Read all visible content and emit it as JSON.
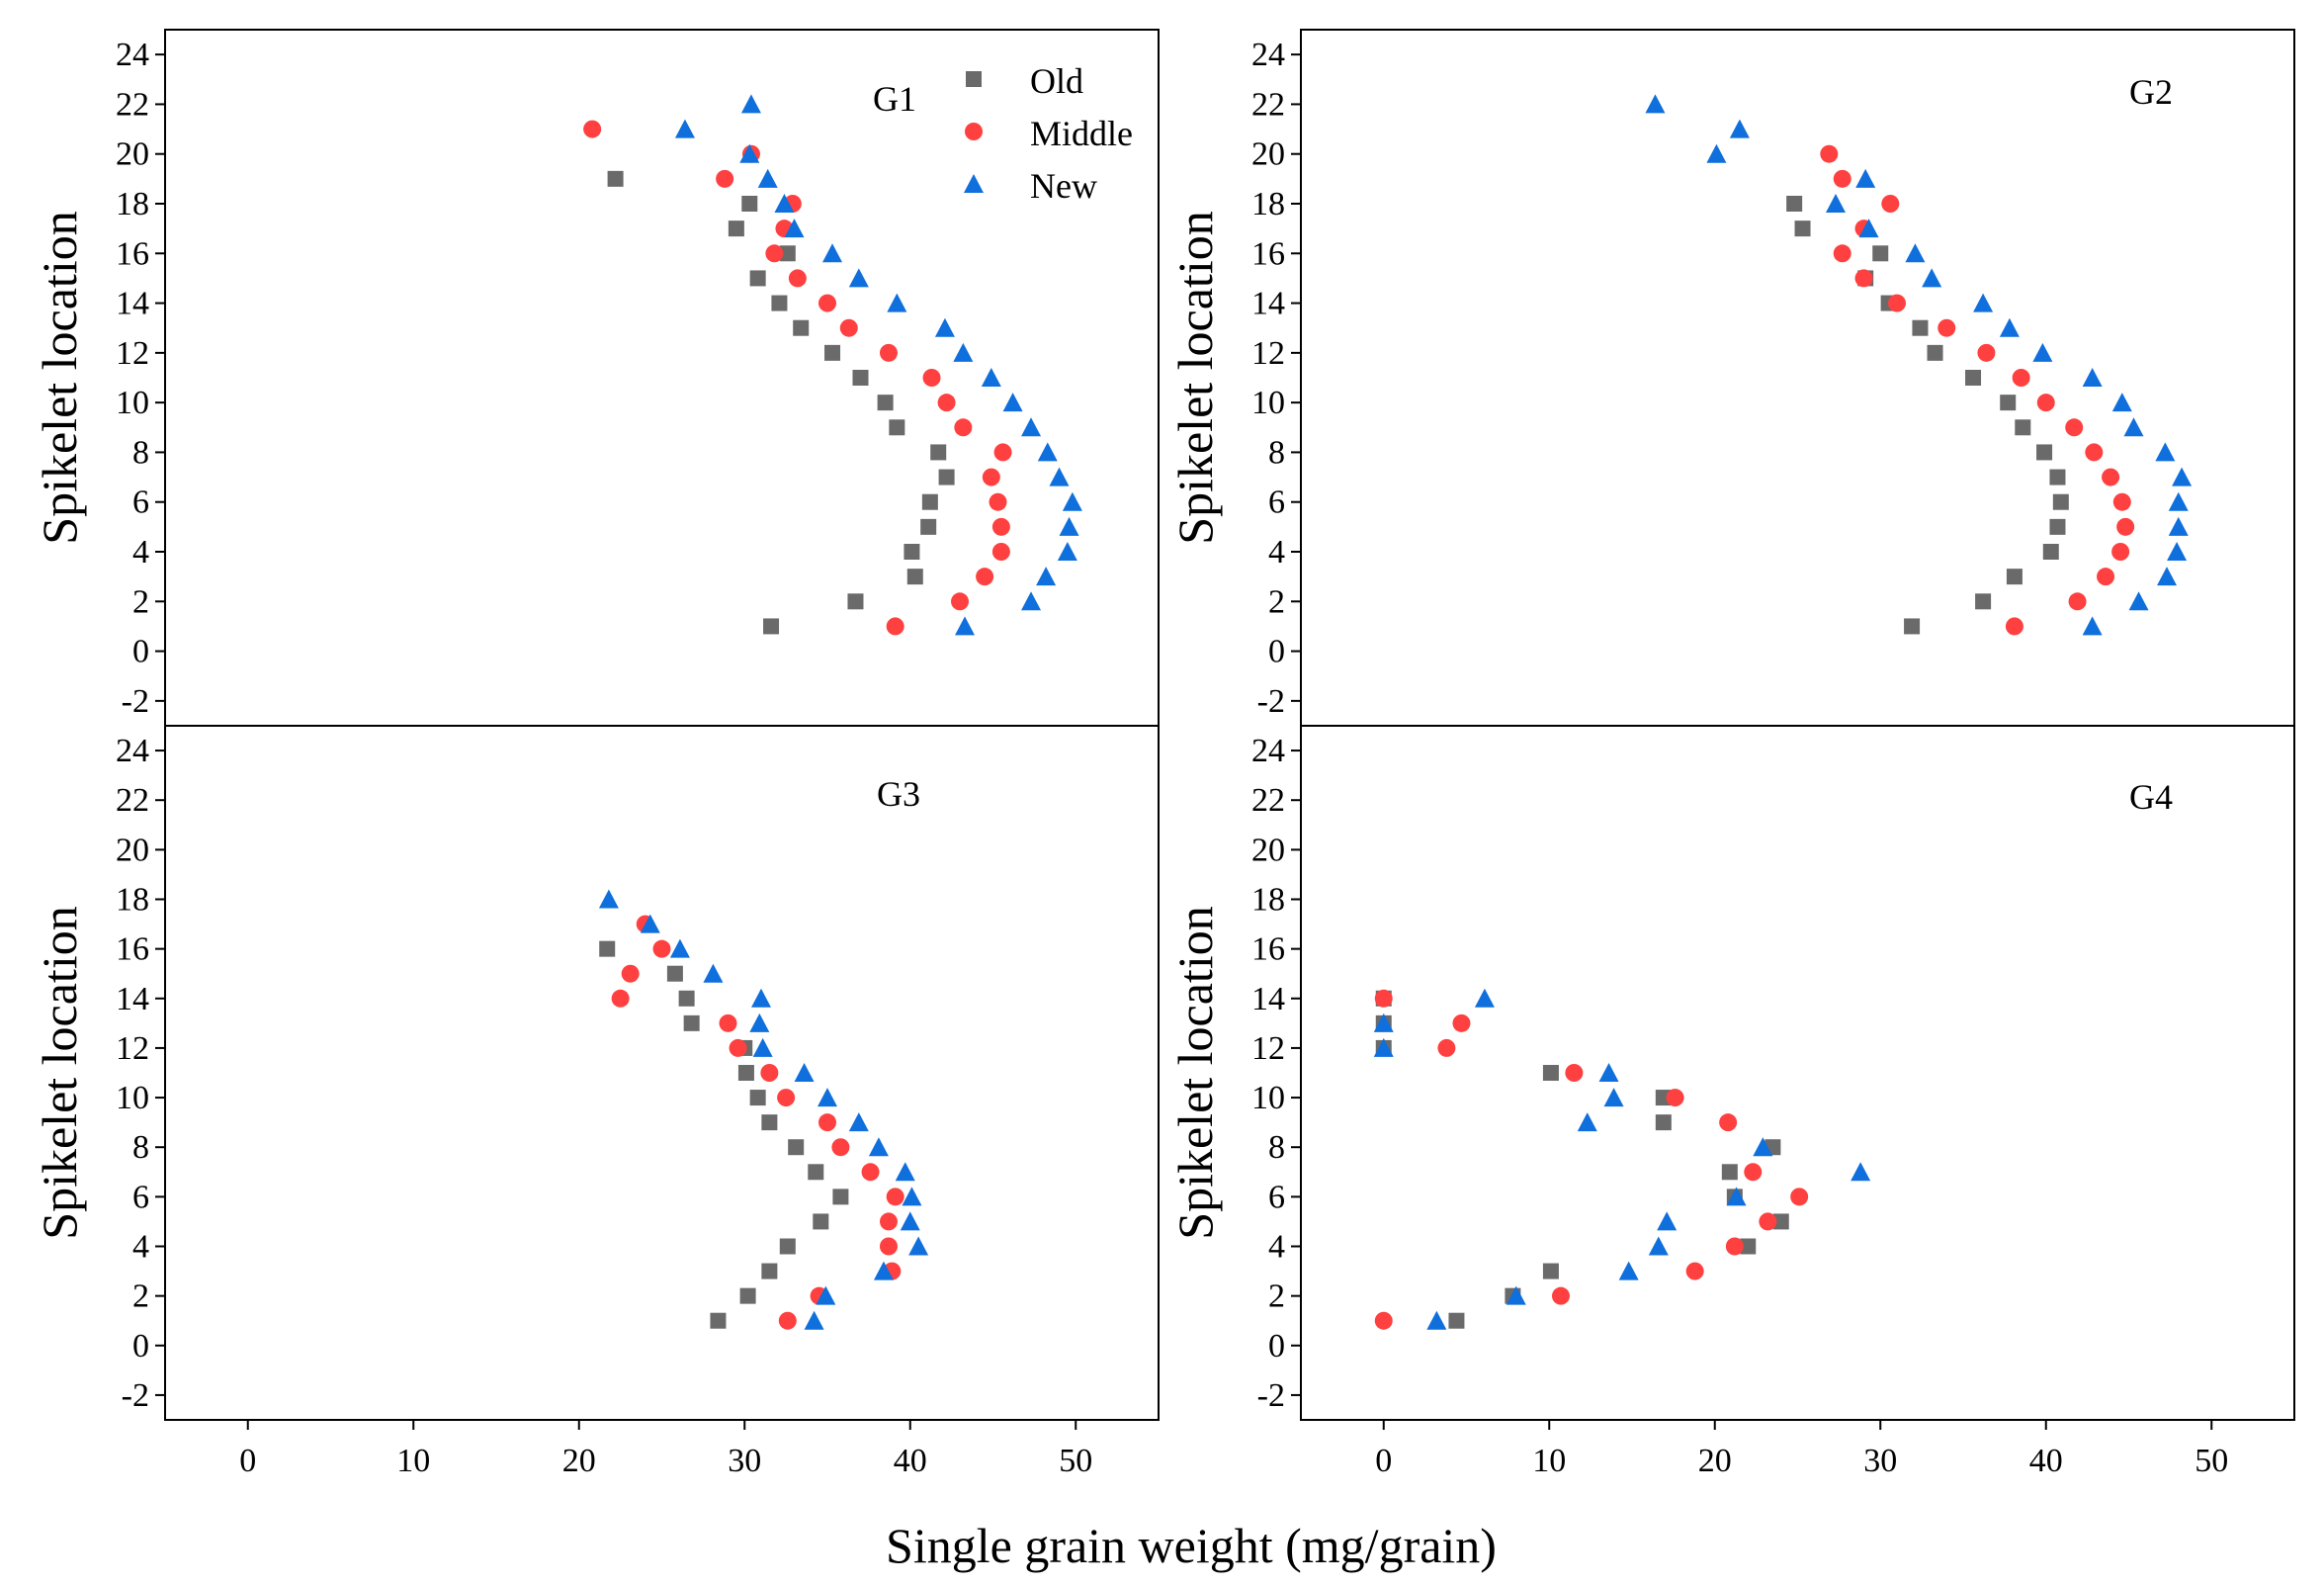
{
  "chart_data": {
    "type": "scatter",
    "xlabel": "Single grain weight (mg/grain)",
    "ylabel": "Spikelet location",
    "xlim": [
      -5,
      55
    ],
    "ylim": [
      -3,
      25
    ],
    "xticks": [
      0,
      10,
      20,
      30,
      40,
      50
    ],
    "xtick_labels": [
      "0",
      "10",
      "20",
      "30",
      "40",
      "50"
    ],
    "yticks": [
      -2,
      0,
      2,
      4,
      6,
      8,
      10,
      12,
      14,
      16,
      18,
      20,
      22,
      24
    ],
    "ytick_labels": [
      "-2",
      "0",
      "2",
      "4",
      "6",
      "8",
      "10",
      "12",
      "14",
      "16",
      "18",
      "20",
      "22",
      "24"
    ],
    "legend": {
      "position": "top-right of G1",
      "entries": [
        {
          "name": "Old",
          "marker": "square",
          "color": "#6a6a6a"
        },
        {
          "name": "Middle",
          "marker": "circle",
          "color": "#ff4040"
        },
        {
          "name": "New",
          "marker": "triangle",
          "color": "#0f6fdc"
        }
      ]
    },
    "panels": [
      {
        "label": "G1",
        "series": [
          {
            "name": "Old",
            "points": [
              [
                31.6,
                1
              ],
              [
                36.7,
                2
              ],
              [
                40.3,
                3
              ],
              [
                40.1,
                4
              ],
              [
                41.1,
                5
              ],
              [
                41.2,
                6
              ],
              [
                42.2,
                7
              ],
              [
                41.7,
                8
              ],
              [
                39.2,
                9
              ],
              [
                38.5,
                10
              ],
              [
                37.0,
                11
              ],
              [
                35.3,
                12
              ],
              [
                33.4,
                13
              ],
              [
                32.1,
                14
              ],
              [
                30.8,
                15
              ],
              [
                32.6,
                16
              ],
              [
                29.5,
                17
              ],
              [
                30.3,
                18
              ],
              [
                22.2,
                19
              ]
            ]
          },
          {
            "name": "Middle",
            "points": [
              [
                39.1,
                1
              ],
              [
                43.0,
                2
              ],
              [
                44.5,
                3
              ],
              [
                45.5,
                4
              ],
              [
                45.5,
                5
              ],
              [
                45.3,
                6
              ],
              [
                44.9,
                7
              ],
              [
                45.6,
                8
              ],
              [
                43.2,
                9
              ],
              [
                42.2,
                10
              ],
              [
                41.3,
                11
              ],
              [
                38.7,
                12
              ],
              [
                36.3,
                13
              ],
              [
                35.0,
                14
              ],
              [
                33.2,
                15
              ],
              [
                31.8,
                16
              ],
              [
                32.4,
                17
              ],
              [
                32.9,
                18
              ],
              [
                28.8,
                19
              ],
              [
                30.4,
                20
              ],
              [
                20.8,
                21
              ]
            ]
          },
          {
            "name": "New",
            "points": [
              [
                43.3,
                1
              ],
              [
                47.3,
                2
              ],
              [
                48.2,
                3
              ],
              [
                49.5,
                4
              ],
              [
                49.6,
                5
              ],
              [
                49.8,
                6
              ],
              [
                49.0,
                7
              ],
              [
                48.3,
                8
              ],
              [
                47.3,
                9
              ],
              [
                46.2,
                10
              ],
              [
                44.9,
                11
              ],
              [
                43.2,
                12
              ],
              [
                42.1,
                13
              ],
              [
                39.2,
                14
              ],
              [
                36.9,
                15
              ],
              [
                35.3,
                16
              ],
              [
                33.0,
                17
              ],
              [
                32.4,
                18
              ],
              [
                31.4,
                19
              ],
              [
                30.3,
                20
              ],
              [
                26.4,
                21
              ],
              [
                30.4,
                22
              ]
            ]
          }
        ]
      },
      {
        "label": "G2",
        "series": [
          {
            "name": "Old",
            "points": [
              [
                31.9,
                1
              ],
              [
                36.2,
                2
              ],
              [
                38.1,
                3
              ],
              [
                40.3,
                4
              ],
              [
                40.7,
                5
              ],
              [
                40.9,
                6
              ],
              [
                40.7,
                7
              ],
              [
                39.9,
                8
              ],
              [
                38.6,
                9
              ],
              [
                37.7,
                10
              ],
              [
                35.6,
                11
              ],
              [
                33.3,
                12
              ],
              [
                32.4,
                13
              ],
              [
                30.5,
                14
              ],
              [
                29.1,
                15
              ],
              [
                30.0,
                16
              ],
              [
                25.3,
                17
              ],
              [
                24.8,
                18
              ]
            ]
          },
          {
            "name": "Middle",
            "points": [
              [
                38.1,
                1
              ],
              [
                41.9,
                2
              ],
              [
                43.6,
                3
              ],
              [
                44.5,
                4
              ],
              [
                44.8,
                5
              ],
              [
                44.6,
                6
              ],
              [
                43.9,
                7
              ],
              [
                42.9,
                8
              ],
              [
                41.7,
                9
              ],
              [
                40.0,
                10
              ],
              [
                38.5,
                11
              ],
              [
                36.4,
                12
              ],
              [
                34.0,
                13
              ],
              [
                31.0,
                14
              ],
              [
                29.0,
                15
              ],
              [
                27.7,
                16
              ],
              [
                29.0,
                17
              ],
              [
                30.6,
                18
              ],
              [
                27.7,
                19
              ],
              [
                26.9,
                20
              ]
            ]
          },
          {
            "name": "New",
            "points": [
              [
                42.8,
                1
              ],
              [
                45.6,
                2
              ],
              [
                47.3,
                3
              ],
              [
                47.9,
                4
              ],
              [
                48.0,
                5
              ],
              [
                48.0,
                6
              ],
              [
                48.2,
                7
              ],
              [
                47.2,
                8
              ],
              [
                45.3,
                9
              ],
              [
                44.6,
                10
              ],
              [
                42.8,
                11
              ],
              [
                39.8,
                12
              ],
              [
                37.8,
                13
              ],
              [
                36.2,
                14
              ],
              [
                33.1,
                15
              ],
              [
                32.1,
                16
              ],
              [
                29.3,
                17
              ],
              [
                27.3,
                18
              ],
              [
                29.1,
                19
              ],
              [
                20.1,
                20
              ],
              [
                21.5,
                21
              ],
              [
                16.4,
                22
              ]
            ]
          }
        ]
      },
      {
        "label": "G3",
        "series": [
          {
            "name": "Old",
            "points": [
              [
                28.4,
                1
              ],
              [
                30.2,
                2
              ],
              [
                31.5,
                3
              ],
              [
                32.6,
                4
              ],
              [
                34.6,
                5
              ],
              [
                35.8,
                6
              ],
              [
                34.3,
                7
              ],
              [
                33.1,
                8
              ],
              [
                31.5,
                9
              ],
              [
                30.8,
                10
              ],
              [
                30.1,
                11
              ],
              [
                30.0,
                12
              ],
              [
                26.8,
                13
              ],
              [
                26.5,
                14
              ],
              [
                25.8,
                15
              ],
              [
                21.7,
                16
              ]
            ]
          },
          {
            "name": "Middle",
            "points": [
              [
                32.6,
                1
              ],
              [
                34.5,
                2
              ],
              [
                38.9,
                3
              ],
              [
                38.7,
                4
              ],
              [
                38.7,
                5
              ],
              [
                39.1,
                6
              ],
              [
                37.6,
                7
              ],
              [
                35.8,
                8
              ],
              [
                35.0,
                9
              ],
              [
                32.5,
                10
              ],
              [
                31.5,
                11
              ],
              [
                29.6,
                12
              ],
              [
                29.0,
                13
              ],
              [
                22.5,
                14
              ],
              [
                23.1,
                15
              ],
              [
                25.0,
                16
              ],
              [
                24.0,
                17
              ]
            ]
          },
          {
            "name": "New",
            "points": [
              [
                34.2,
                1
              ],
              [
                34.9,
                2
              ],
              [
                38.4,
                3
              ],
              [
                40.5,
                4
              ],
              [
                40.0,
                5
              ],
              [
                40.1,
                6
              ],
              [
                39.7,
                7
              ],
              [
                38.1,
                8
              ],
              [
                36.9,
                9
              ],
              [
                35.0,
                10
              ],
              [
                33.6,
                11
              ],
              [
                31.1,
                12
              ],
              [
                30.9,
                13
              ],
              [
                31.0,
                14
              ],
              [
                28.1,
                15
              ],
              [
                26.1,
                16
              ],
              [
                24.3,
                17
              ],
              [
                21.8,
                18
              ]
            ]
          }
        ]
      },
      {
        "label": "G4",
        "series": [
          {
            "name": "Old",
            "points": [
              [
                4.4,
                1
              ],
              [
                7.8,
                2
              ],
              [
                10.1,
                3
              ],
              [
                22.0,
                4
              ],
              [
                24.0,
                5
              ],
              [
                21.2,
                6
              ],
              [
                20.9,
                7
              ],
              [
                23.5,
                8
              ],
              [
                16.9,
                9
              ],
              [
                16.9,
                10
              ],
              [
                10.1,
                11
              ],
              [
                0.0,
                12
              ],
              [
                0.0,
                13
              ],
              [
                0.0,
                14
              ]
            ]
          },
          {
            "name": "Middle",
            "points": [
              [
                0.0,
                1
              ],
              [
                10.7,
                2
              ],
              [
                18.8,
                3
              ],
              [
                21.2,
                4
              ],
              [
                23.2,
                5
              ],
              [
                25.1,
                6
              ],
              [
                22.3,
                7
              ],
              [
                20.8,
                9
              ],
              [
                17.6,
                10
              ],
              [
                11.5,
                11
              ],
              [
                3.8,
                12
              ],
              [
                4.7,
                13
              ],
              [
                0.0,
                14
              ]
            ]
          },
          {
            "name": "New",
            "points": [
              [
                3.2,
                1
              ],
              [
                8.0,
                2
              ],
              [
                14.8,
                3
              ],
              [
                16.6,
                4
              ],
              [
                17.1,
                5
              ],
              [
                21.3,
                6
              ],
              [
                28.8,
                7
              ],
              [
                22.9,
                8
              ],
              [
                12.3,
                9
              ],
              [
                13.9,
                10
              ],
              [
                13.6,
                11
              ],
              [
                0.0,
                12
              ],
              [
                0.0,
                13
              ],
              [
                6.1,
                14
              ]
            ]
          }
        ]
      }
    ]
  }
}
